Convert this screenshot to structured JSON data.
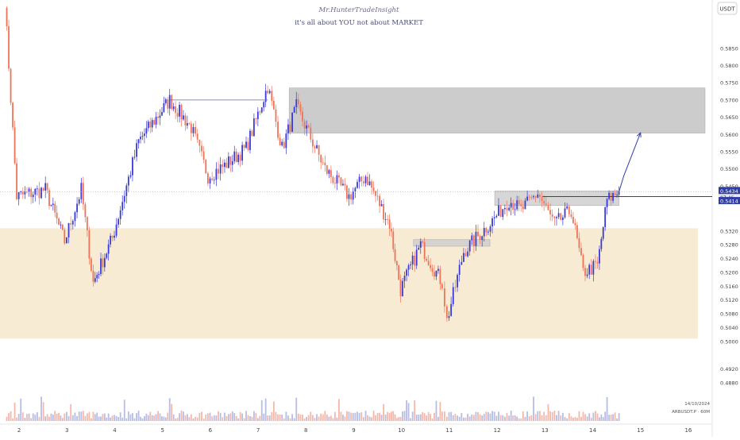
{
  "watermark": {
    "line1": "Mr.HunterTradeInsight",
    "line2": "it's all about YOU not about MARKET"
  },
  "currency_badge": "USDT",
  "symbol_caption": "ARBUSDT.P · 60M",
  "date_caption": "14/10/2024",
  "colors": {
    "up": "#3a3ad8",
    "down": "#f07358",
    "supply_zone": "#c3c3c3",
    "demand_zone": "#f6e7cc",
    "small_zone": "#cfcfcf",
    "price_line": "#2f3da8",
    "projection": "#2f3da8",
    "volume_up": "#b8bde4",
    "volume_down": "#f5b7aa"
  },
  "chart_data": {
    "type": "candlestick",
    "timeframe": "60M",
    "y_axis": {
      "range": [
        0.476,
        0.599
      ],
      "ticks": [
        "0.5850",
        "0.5800",
        "0.5750",
        "0.5700",
        "0.5650",
        "0.5600",
        "0.5550",
        "0.5500",
        "0.5450",
        "0.5320",
        "0.5280",
        "0.5240",
        "0.5200",
        "0.5160",
        "0.5120",
        "0.5080",
        "0.5040",
        "0.5000",
        "0.4920",
        "0.4880"
      ]
    },
    "x_axis": {
      "day_range": [
        1.6,
        16.5
      ],
      "ticks": [
        "2",
        "3",
        "4",
        "5",
        "6",
        "7",
        "8",
        "9",
        "10",
        "11",
        "12",
        "13",
        "14",
        "15",
        "16"
      ]
    },
    "price_labels": {
      "last": "0.5434",
      "countdown": "07:46",
      "lower": "0.5414"
    },
    "key_points": [
      {
        "day": 1.7,
        "price": 0.599
      },
      {
        "day": 1.95,
        "price": 0.542
      },
      {
        "day": 2.55,
        "price": 0.544
      },
      {
        "day": 2.95,
        "price": 0.529
      },
      {
        "day": 3.3,
        "price": 0.544
      },
      {
        "day": 3.55,
        "price": 0.517
      },
      {
        "day": 3.95,
        "price": 0.53
      },
      {
        "day": 4.5,
        "price": 0.558
      },
      {
        "day": 5.15,
        "price": 0.57
      },
      {
        "day": 5.6,
        "price": 0.562
      },
      {
        "day": 5.95,
        "price": 0.548
      },
      {
        "day": 6.3,
        "price": 0.551
      },
      {
        "day": 6.75,
        "price": 0.556
      },
      {
        "day": 7.2,
        "price": 0.574
      },
      {
        "day": 7.5,
        "price": 0.556
      },
      {
        "day": 7.8,
        "price": 0.568
      },
      {
        "day": 8.4,
        "price": 0.55
      },
      {
        "day": 8.9,
        "price": 0.542
      },
      {
        "day": 9.25,
        "price": 0.548
      },
      {
        "day": 9.75,
        "price": 0.534
      },
      {
        "day": 9.98,
        "price": 0.515
      },
      {
        "day": 10.4,
        "price": 0.528
      },
      {
        "day": 10.85,
        "price": 0.517
      },
      {
        "day": 10.95,
        "price": 0.506
      },
      {
        "day": 11.3,
        "price": 0.526
      },
      {
        "day": 11.9,
        "price": 0.535
      },
      {
        "day": 12.25,
        "price": 0.541
      },
      {
        "day": 12.5,
        "price": 0.538
      },
      {
        "day": 12.85,
        "price": 0.543
      },
      {
        "day": 13.2,
        "price": 0.534
      },
      {
        "day": 13.55,
        "price": 0.538
      },
      {
        "day": 13.8,
        "price": 0.52
      },
      {
        "day": 14.1,
        "price": 0.522
      },
      {
        "day": 14.3,
        "price": 0.541
      },
      {
        "day": 14.55,
        "price": 0.5434
      }
    ],
    "zones": [
      {
        "name": "supply",
        "day_range": [
          7.65,
          16.35
        ],
        "price_range": [
          0.5604,
          0.5735
        ]
      },
      {
        "name": "demand",
        "day_range": [
          1.6,
          16.2
        ],
        "price_range": [
          0.5008,
          0.5328
        ]
      },
      {
        "name": "mid-left",
        "day_range": [
          10.25,
          11.85
        ],
        "price_range": [
          0.5276,
          0.5295
        ]
      },
      {
        "name": "mid-right",
        "day_range": [
          11.95,
          14.55
        ],
        "price_range": [
          0.5394,
          0.5436
        ]
      }
    ],
    "lines": {
      "top_line": {
        "day_range": [
          5.15,
          7.2
        ],
        "price": 0.57
      },
      "horizontal_level": {
        "day_range": [
          12.95,
          16.5
        ],
        "price": 0.542
      }
    },
    "projection": [
      {
        "day": 14.55,
        "price": 0.5434
      },
      {
        "day": 14.65,
        "price": 0.548
      },
      {
        "day": 15.0,
        "price": 0.5605
      }
    ]
  }
}
